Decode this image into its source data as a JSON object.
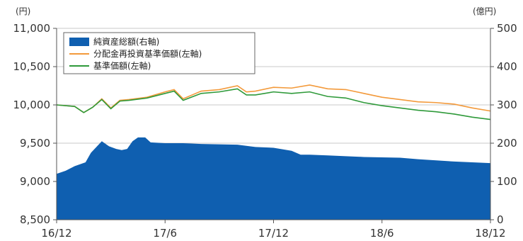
{
  "chart_data": {
    "type": "area+line",
    "left_axis": {
      "unit": "(円)",
      "ticks": [
        "8,500",
        "9,000",
        "9,500",
        "10,000",
        "10,500",
        "11,000"
      ],
      "range": [
        8500,
        11000
      ]
    },
    "right_axis": {
      "unit": "(億円)",
      "ticks": [
        "0",
        "100",
        "200",
        "300",
        "400",
        "500"
      ],
      "range": [
        0,
        500
      ]
    },
    "x_axis": {
      "ticks": [
        "16/12",
        "17/6",
        "17/12",
        "18/6",
        "18/12"
      ],
      "range": [
        0,
        24
      ]
    },
    "legend": {
      "placement": "top-left",
      "items": [
        {
          "label": "純資産総額(右軸)",
          "color": "#0f5fb0",
          "kind": "area"
        },
        {
          "label": "分配金再投資基準価額(左軸)",
          "color": "#f39a3b",
          "kind": "line"
        },
        {
          "label": "基準価額(左軸)",
          "color": "#2f9a3a",
          "kind": "line"
        }
      ]
    },
    "series": [
      {
        "name": "純資産総額(右軸)",
        "axis": "right",
        "color": "#0f5fb0",
        "points": [
          [
            0,
            120
          ],
          [
            0.5,
            128
          ],
          [
            1,
            140
          ],
          [
            1.6,
            150
          ],
          [
            1.9,
            175
          ],
          [
            2.2,
            190
          ],
          [
            2.5,
            205
          ],
          [
            2.9,
            192
          ],
          [
            3.3,
            185
          ],
          [
            3.6,
            182
          ],
          [
            3.9,
            185
          ],
          [
            4.2,
            205
          ],
          [
            4.5,
            215
          ],
          [
            4.9,
            215
          ],
          [
            5.2,
            202
          ],
          [
            6,
            200
          ],
          [
            7,
            200
          ],
          [
            8,
            198
          ],
          [
            9,
            197
          ],
          [
            10,
            196
          ],
          [
            11,
            190
          ],
          [
            12,
            188
          ],
          [
            13,
            180
          ],
          [
            13.5,
            170
          ],
          [
            14,
            170
          ],
          [
            15,
            168
          ],
          [
            16,
            166
          ],
          [
            17,
            164
          ],
          [
            18,
            163
          ],
          [
            19,
            162
          ],
          [
            20,
            158
          ],
          [
            21,
            155
          ],
          [
            22,
            152
          ],
          [
            23,
            150
          ],
          [
            24,
            148
          ]
        ]
      },
      {
        "name": "分配金再投資基準価額(左軸)",
        "axis": "left",
        "color": "#f39a3b",
        "points": [
          [
            0,
            10000
          ],
          [
            1,
            9980
          ],
          [
            1.5,
            9900
          ],
          [
            2,
            9970
          ],
          [
            2.5,
            10080
          ],
          [
            3,
            9960
          ],
          [
            3.5,
            10060
          ],
          [
            4,
            10070
          ],
          [
            5,
            10100
          ],
          [
            6,
            10170
          ],
          [
            6.5,
            10200
          ],
          [
            7,
            10080
          ],
          [
            8,
            10180
          ],
          [
            9,
            10200
          ],
          [
            10,
            10250
          ],
          [
            10.5,
            10170
          ],
          [
            11,
            10180
          ],
          [
            12,
            10230
          ],
          [
            13,
            10220
          ],
          [
            14,
            10260
          ],
          [
            15,
            10210
          ],
          [
            16,
            10200
          ],
          [
            17,
            10150
          ],
          [
            18,
            10100
          ],
          [
            19,
            10070
          ],
          [
            20,
            10040
          ],
          [
            21,
            10030
          ],
          [
            22,
            10010
          ],
          [
            23,
            9960
          ],
          [
            24,
            9920
          ]
        ]
      },
      {
        "name": "基準価額(左軸)",
        "axis": "left",
        "color": "#2f9a3a",
        "points": [
          [
            0,
            10000
          ],
          [
            1,
            9980
          ],
          [
            1.5,
            9900
          ],
          [
            2,
            9970
          ],
          [
            2.5,
            10070
          ],
          [
            3,
            9950
          ],
          [
            3.5,
            10050
          ],
          [
            4,
            10060
          ],
          [
            5,
            10090
          ],
          [
            6,
            10150
          ],
          [
            6.5,
            10180
          ],
          [
            7,
            10060
          ],
          [
            8,
            10150
          ],
          [
            9,
            10170
          ],
          [
            10,
            10210
          ],
          [
            10.5,
            10130
          ],
          [
            11,
            10130
          ],
          [
            12,
            10170
          ],
          [
            13,
            10150
          ],
          [
            14,
            10170
          ],
          [
            15,
            10110
          ],
          [
            16,
            10090
          ],
          [
            17,
            10030
          ],
          [
            18,
            9990
          ],
          [
            19,
            9960
          ],
          [
            20,
            9930
          ],
          [
            21,
            9910
          ],
          [
            22,
            9880
          ],
          [
            23,
            9840
          ],
          [
            24,
            9810
          ]
        ]
      }
    ]
  }
}
